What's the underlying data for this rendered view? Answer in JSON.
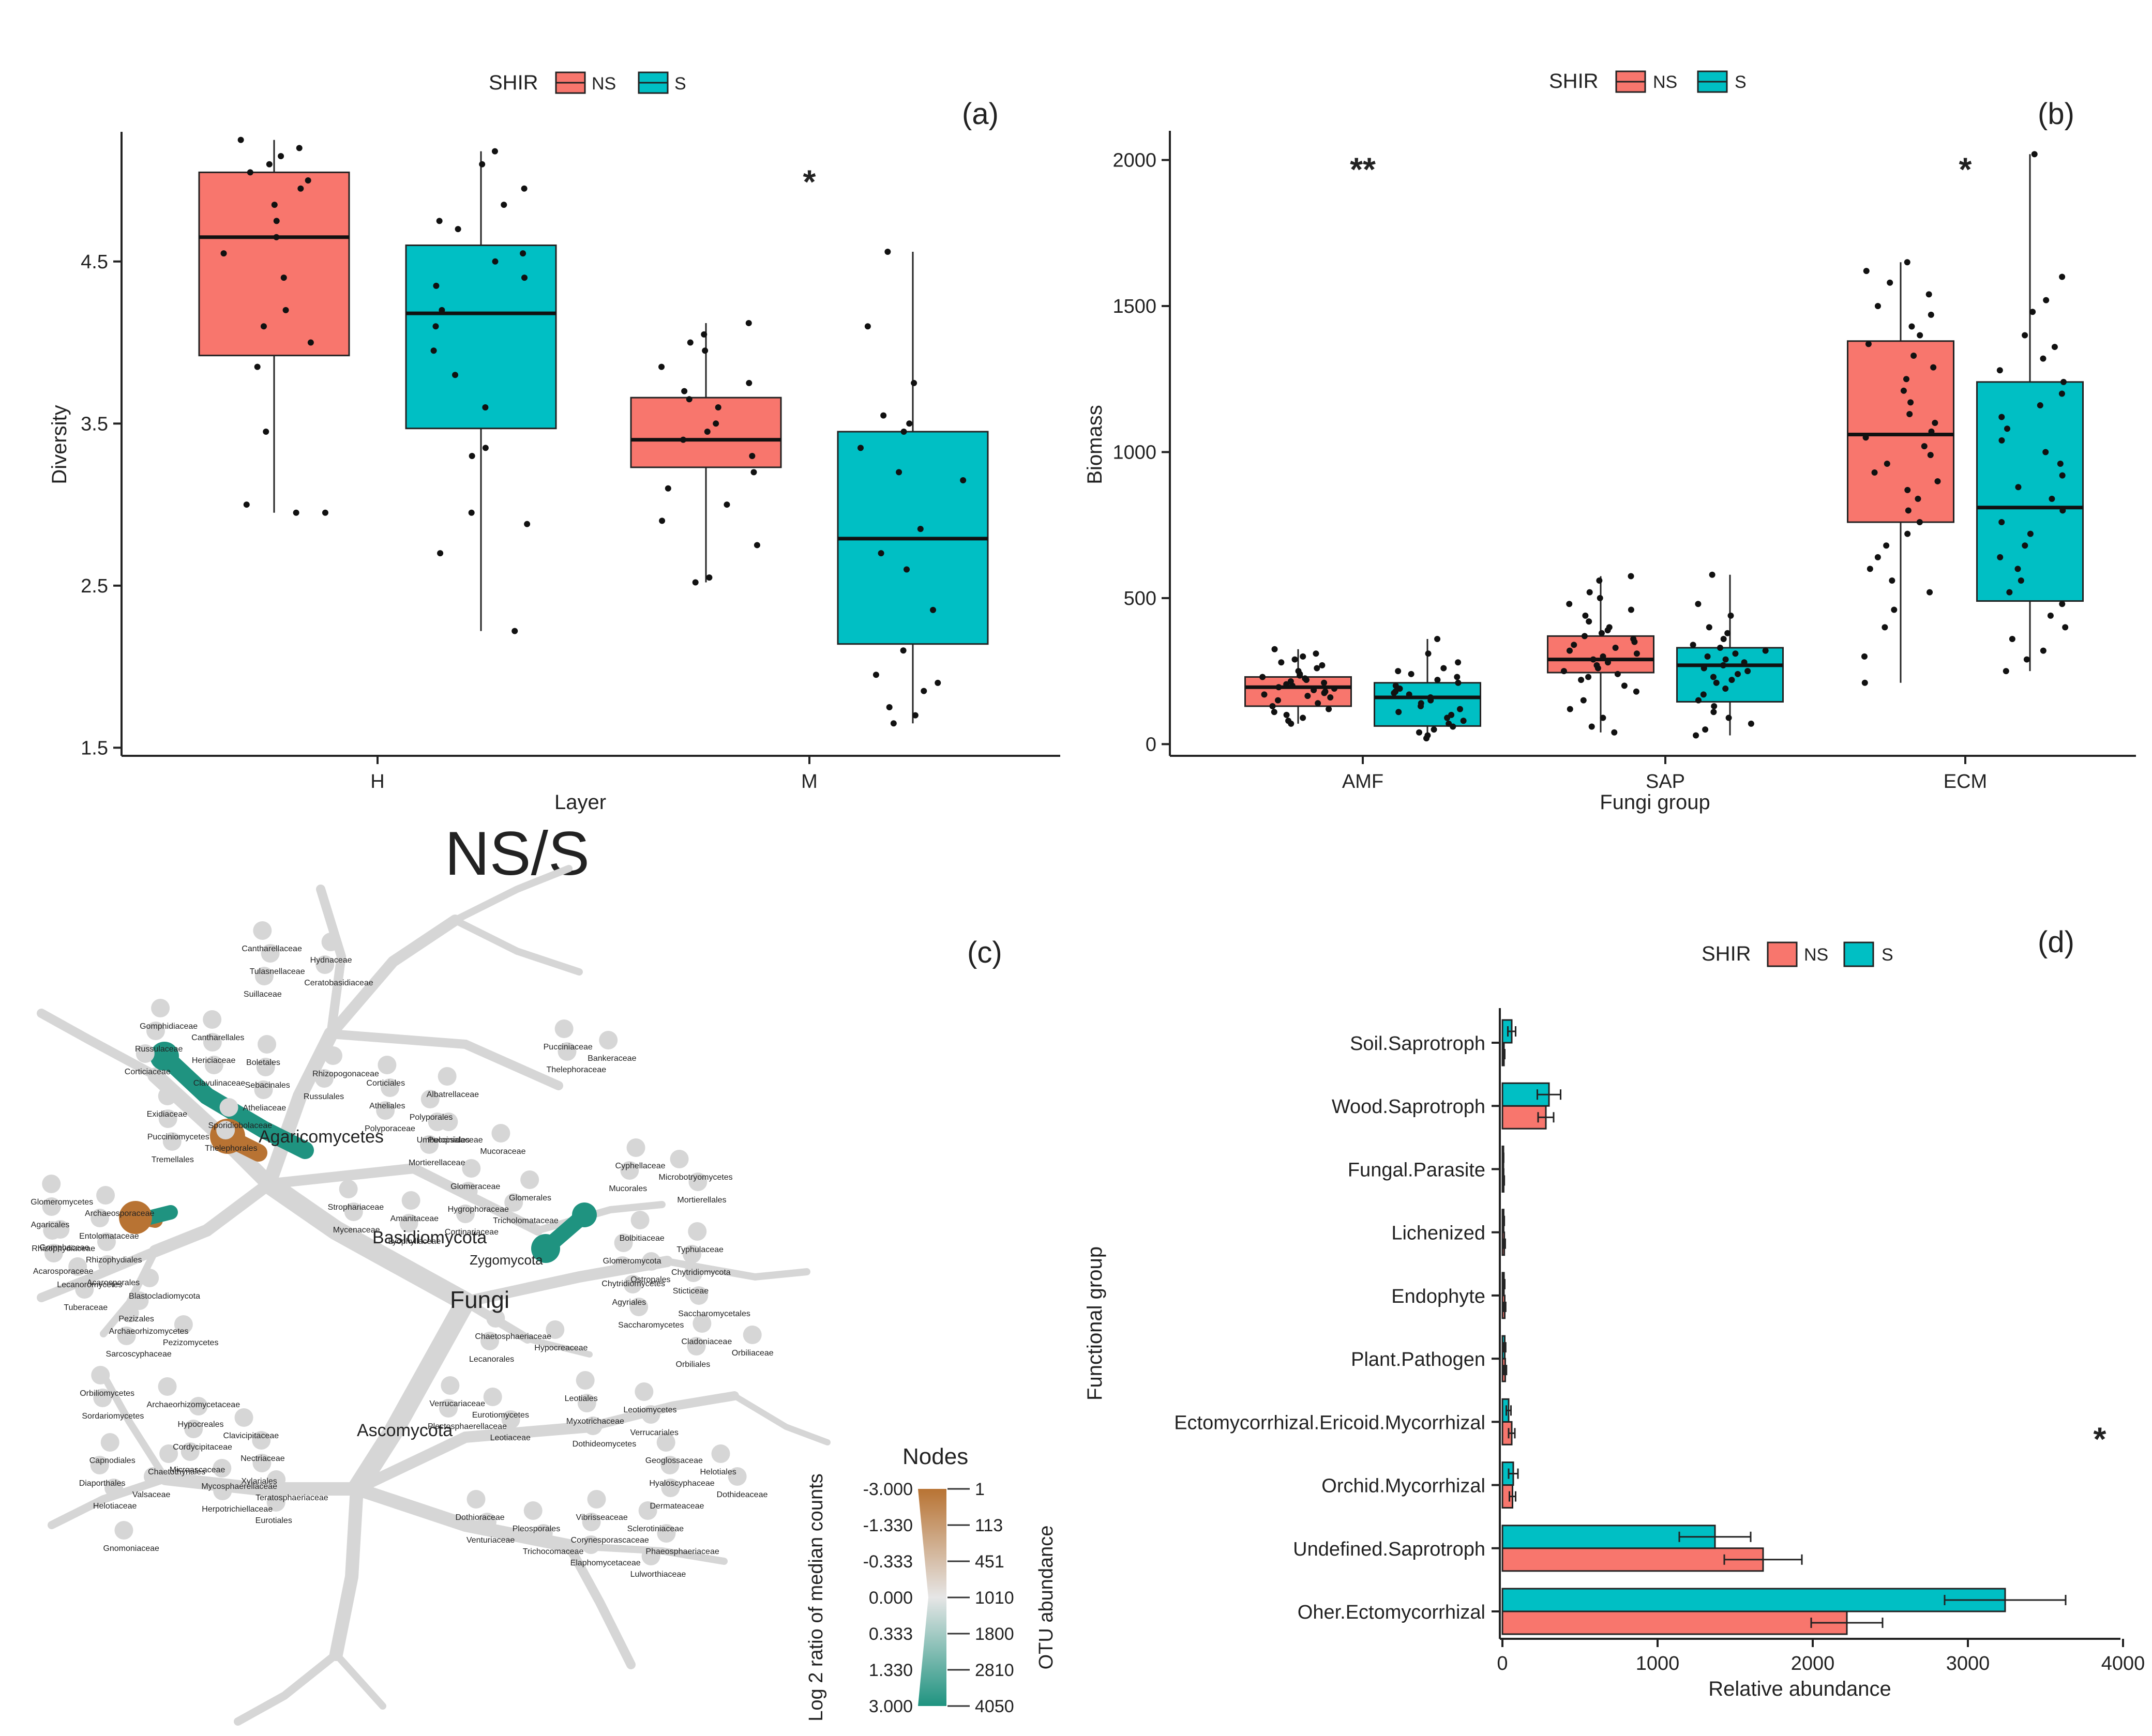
{
  "colors": {
    "ns": "#F8766D",
    "s": "#00BFC4",
    "orange": "#B87333",
    "teal": "#1F9380",
    "grey": "#D6D6D6"
  },
  "center_title": "NS/S",
  "chart_data": [
    {
      "panel": "(a)",
      "type": "box",
      "legend": {
        "title": "SHIR",
        "items": [
          "NS",
          "S"
        ],
        "position": "top"
      },
      "xlabel": "Layer",
      "ylabel": "Diversity",
      "ylim": [
        1.45,
        5.3
      ],
      "yticks": [
        1.5,
        2.5,
        3.5,
        4.5
      ],
      "ytick_labels": [
        "1.5",
        "2.5",
        "3.5",
        "4.5"
      ],
      "categories": [
        "H",
        "M"
      ],
      "annotations": [
        {
          "category": "M",
          "text": "*",
          "y": 5.05
        }
      ],
      "series": [
        {
          "name": "NS",
          "boxes": [
            {
              "min": 2.95,
              "q1": 3.92,
              "median": 4.65,
              "q3": 5.05,
              "max": 5.25,
              "points": [
                5.25,
                5.2,
                5.15,
                5.1,
                5.05,
                5.0,
                4.95,
                4.85,
                4.75,
                4.65,
                4.55,
                4.4,
                4.2,
                4.1,
                4.0,
                3.85,
                3.45,
                3.0,
                2.95,
                2.95
              ]
            },
            {
              "min": 2.52,
              "q1": 3.23,
              "median": 3.4,
              "q3": 3.66,
              "max": 4.12,
              "points": [
                4.12,
                4.05,
                4.0,
                3.95,
                3.85,
                3.75,
                3.7,
                3.65,
                3.6,
                3.5,
                3.45,
                3.4,
                3.3,
                3.2,
                3.1,
                3.0,
                2.9,
                2.75,
                2.55,
                2.52
              ]
            }
          ]
        },
        {
          "name": "S",
          "boxes": [
            {
              "min": 2.22,
              "q1": 3.47,
              "median": 4.18,
              "q3": 4.6,
              "max": 5.18,
              "points": [
                5.18,
                5.1,
                4.95,
                4.85,
                4.75,
                4.7,
                4.55,
                4.5,
                4.4,
                4.35,
                4.2,
                4.1,
                3.95,
                3.8,
                3.6,
                3.35,
                3.3,
                2.95,
                2.88,
                2.7,
                2.22
              ]
            },
            {
              "min": 1.65,
              "q1": 2.14,
              "median": 2.79,
              "q3": 3.45,
              "max": 4.56,
              "points": [
                4.56,
                4.1,
                3.75,
                3.55,
                3.5,
                3.45,
                3.35,
                3.2,
                3.15,
                2.85,
                2.7,
                2.6,
                2.35,
                2.1,
                1.95,
                1.9,
                1.85,
                1.75,
                1.7,
                1.65
              ]
            }
          ]
        }
      ]
    },
    {
      "panel": "(b)",
      "type": "box",
      "legend": {
        "title": "SHIR",
        "items": [
          "NS",
          "S"
        ],
        "position": "top"
      },
      "xlabel": "Fungi group",
      "ylabel": "Biomass",
      "ylim": [
        -40,
        2100
      ],
      "yticks": [
        0,
        500,
        1000,
        1500,
        2000
      ],
      "ytick_labels": [
        "0",
        "500",
        "1000",
        "1500",
        "2000"
      ],
      "categories": [
        "AMF",
        "SAP",
        "ECM"
      ],
      "annotations": [
        {
          "category": "AMF",
          "text": "**",
          "y": 2000
        },
        {
          "category": "ECM",
          "text": "*",
          "y": 2000
        }
      ],
      "series": [
        {
          "name": "NS",
          "boxes": [
            {
              "min": 70,
              "q1": 130,
              "median": 195,
              "q3": 230,
              "max": 325,
              "points": [
                325,
                310,
                300,
                290,
                280,
                270,
                260,
                250,
                240,
                235,
                230,
                225,
                220,
                215,
                210,
                205,
                200,
                195,
                190,
                185,
                180,
                175,
                170,
                165,
                160,
                150,
                140,
                130,
                120,
                110,
                100,
                90,
                80,
                70
              ]
            },
            {
              "min": 40,
              "q1": 245,
              "median": 290,
              "q3": 370,
              "max": 575,
              "points": [
                575,
                560,
                520,
                500,
                480,
                460,
                440,
                420,
                400,
                390,
                380,
                370,
                360,
                350,
                340,
                330,
                320,
                310,
                300,
                290,
                280,
                270,
                260,
                250,
                240,
                230,
                220,
                200,
                180,
                150,
                120,
                90,
                60,
                40
              ]
            },
            {
              "min": 210,
              "q1": 760,
              "median": 1060,
              "q3": 1380,
              "max": 1650,
              "points": [
                1650,
                1620,
                1580,
                1540,
                1500,
                1470,
                1430,
                1400,
                1370,
                1330,
                1290,
                1250,
                1210,
                1170,
                1130,
                1100,
                1070,
                1050,
                1020,
                990,
                960,
                930,
                900,
                870,
                840,
                800,
                760,
                720,
                680,
                640,
                600,
                560,
                520,
                460,
                400,
                300,
                210
              ]
            }
          ]
        },
        {
          "name": "S",
          "boxes": [
            {
              "min": 20,
              "q1": 62,
              "median": 160,
              "q3": 210,
              "max": 360,
              "points": [
                360,
                310,
                280,
                260,
                250,
                240,
                230,
                220,
                210,
                200,
                190,
                180,
                175,
                170,
                160,
                150,
                140,
                130,
                120,
                110,
                100,
                90,
                80,
                70,
                60,
                50,
                40,
                30,
                20
              ]
            },
            {
              "min": 30,
              "q1": 145,
              "median": 270,
              "q3": 330,
              "max": 580,
              "points": [
                580,
                480,
                440,
                400,
                380,
                360,
                340,
                330,
                320,
                310,
                300,
                290,
                280,
                270,
                260,
                250,
                240,
                230,
                220,
                210,
                190,
                170,
                150,
                130,
                110,
                90,
                70,
                50,
                30
              ]
            },
            {
              "min": 250,
              "q1": 490,
              "median": 810,
              "q3": 1240,
              "max": 2020,
              "points": [
                2020,
                1600,
                1520,
                1480,
                1400,
                1360,
                1320,
                1280,
                1240,
                1200,
                1160,
                1120,
                1080,
                1040,
                1000,
                960,
                920,
                880,
                840,
                800,
                760,
                720,
                680,
                640,
                600,
                560,
                520,
                480,
                440,
                400,
                360,
                320,
                290,
                250
              ]
            }
          ]
        }
      ]
    },
    {
      "panel": "(c)",
      "type": "heat_tree",
      "legend_title": "Nodes",
      "color_axis_label": "Log 2 ratio of median counts",
      "color_ticks": [
        "-3.000",
        "-1.330",
        "-0.333",
        "0.000",
        "0.333",
        "1.330",
        "3.000"
      ],
      "size_axis_label": "OTU abundance",
      "size_ticks": [
        "1",
        "113",
        "451",
        "1010",
        "1800",
        "2810",
        "4050"
      ],
      "labels": {
        "root": "Fungi",
        "phyla": [
          "Agaricomycetes",
          "Basidiomycota",
          "Ascomycota",
          "Zygomycota"
        ],
        "small": [
          "Cantharellaceae",
          "Hydnaceae",
          "Tulasnellaceae",
          "Ceratobasidiaceae",
          "Suillaceae",
          "Gomphidiaceae",
          "Cantharellales",
          "Russulaceae",
          "Hericiaceae",
          "Corticiaceae",
          "Clavulinaceae",
          "Boletales",
          "Rhizopogonaceae",
          "Sebacinales",
          "Russulales",
          "Atheliaceae",
          "Corticiales",
          "Albatrellaceae",
          "Atheliales",
          "Polyporales",
          "Polyporaceae",
          "Pucciniales",
          "Pucciniaceae",
          "Bankeraceae",
          "Thelephoraceae",
          "Exidiaceae",
          "Sporidiobolaceae",
          "Pucciniomycetes",
          "Thelephorales",
          "Tremellales",
          "Umbelopsidaceae",
          "Mucoraceae",
          "Mortierellaceae",
          "Glomeraceae",
          "Glomerales",
          "Hygrophoraceae",
          "Tricholomataceae",
          "Cortinariaceae",
          "Cyphellaceae",
          "Microbotryomycetes",
          "Mucorales",
          "Mortierellales",
          "Glomeromycetes",
          "Archaeosporaceae",
          "Agaricales",
          "Entolomataceae",
          "Gomphaceae",
          "Strophariaceae",
          "Amanitaceae",
          "Mycenaceae",
          "Lyophyllaceae",
          "Bolbitiaceae",
          "Typhulaceae",
          "Glomeromycota",
          "Chytridiomycota",
          "Chytridiomycetes",
          "Rhizophydiaceae",
          "Rhizophydiales",
          "Acarosporaceae",
          "Acarosporales",
          "Lecanoromycetes",
          "Blastocladiomycota",
          "Tuberaceae",
          "Pezizales",
          "Ostropales",
          "Sticticeae",
          "Agyriales",
          "Saccharomycetales",
          "Saccharomycetes",
          "Archaeorhizomycetes",
          "Pezizomycetes",
          "Sarcoscyphaceae",
          "Chaetosphaeriaceae",
          "Hypocreaceae",
          "Lecanorales",
          "Cladoniaceae",
          "Orbiliaceae",
          "Orbiliales",
          "Orbiliomycetes",
          "Archaeorhizomycetaceae",
          "Sordariomycetes",
          "Hypocreales",
          "Clavicipitaceae",
          "Cordycipitaceae",
          "Nectriaceae",
          "Microascaceae",
          "Xylariales",
          "Verrucariaceae",
          "Eurotiomycetes",
          "Plectosphaerellaceae",
          "Leotiaceae",
          "Leotiales",
          "Leotiomycetes",
          "Myxotrichaceae",
          "Verrucariales",
          "Dothideomycetes",
          "Capnodiales",
          "Chaetothyriales",
          "Diaporthales",
          "Valsaceae",
          "Helotiaceae",
          "Mycosphaerellaceae",
          "Teratosphaeriaceae",
          "Herpotrichiellaceae",
          "Eurotiales",
          "Geoglossaceae",
          "Helotiales",
          "Hyaloscyphaceae",
          "Dothideaceae",
          "Dermateaceae",
          "Dothioraceae",
          "Pleosporales",
          "Venturiaceae",
          "Trichocomaceae",
          "Vibrisseaceae",
          "Sclerotiniaceae",
          "Corynesporascaceae",
          "Phaeosphaeriaceae",
          "Elaphomycetaceae",
          "Lulworthiaceae",
          "Gnomoniaceae"
        ]
      }
    },
    {
      "panel": "(d)",
      "type": "bar",
      "orientation": "horizontal",
      "legend": {
        "title": "SHIR",
        "items": [
          "NS",
          "S"
        ],
        "position": "top"
      },
      "xlabel": "Relative abundance",
      "ylabel": "Functional group",
      "xlim": [
        -150,
        4100
      ],
      "xticks": [
        0,
        1000,
        2000,
        3000,
        4000
      ],
      "xtick_labels": [
        "0",
        "1000",
        "2000",
        "3000",
        "4000"
      ],
      "categories": [
        "Soil.Saprotroph",
        "Wood.Saprotroph",
        "Fungal.Parasite",
        "Lichenized",
        "Endophyte",
        "Plant.Pathogen",
        "Ectomycorrhizal.Ericoid.Mycorrhizal",
        "Orchid.Mycorrhizal",
        "Undefined.Saprotroph",
        "Oher.Ectomycorrhizal"
      ],
      "annotations": [
        {
          "category": "Ectomycorrhizal.Ericoid.Mycorrhizal",
          "text": "*"
        }
      ],
      "series": [
        {
          "name": "NS",
          "values": [
            10,
            280,
            8,
            12,
            15,
            18,
            60,
            65,
            1680,
            2220
          ],
          "errors": [
            5,
            50,
            4,
            6,
            6,
            8,
            20,
            20,
            250,
            230
          ]
        },
        {
          "name": "S",
          "values": [
            60,
            300,
            5,
            8,
            10,
            15,
            40,
            70,
            1370,
            3240
          ],
          "errors": [
            25,
            75,
            3,
            4,
            5,
            6,
            15,
            30,
            230,
            390
          ]
        }
      ]
    }
  ]
}
